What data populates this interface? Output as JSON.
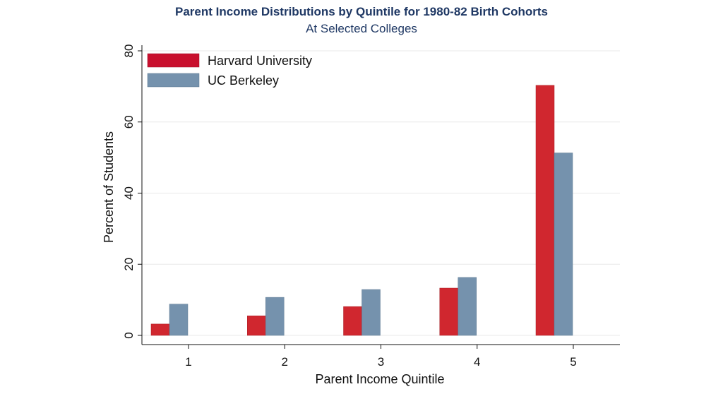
{
  "chart_data": {
    "type": "bar",
    "title": "Parent Income Distributions by Quintile for 1980-82 Birth Cohorts",
    "subtitle": "At Selected Colleges",
    "xlabel": "Parent Income Quintile",
    "ylabel": "Percent of Students",
    "categories": [
      "1",
      "2",
      "3",
      "4",
      "5"
    ],
    "ylim": [
      0,
      80
    ],
    "yticks": [
      "0",
      "20",
      "40",
      "60",
      "80"
    ],
    "grid": true,
    "legend_position": "top-left",
    "series": [
      {
        "name": "Harvard University",
        "color": "#d0272f",
        "legend_color": "#c8102e",
        "values": [
          3.2,
          5.5,
          8.1,
          13.3,
          70.3
        ]
      },
      {
        "name": "UC Berkeley",
        "color": "#7592ad",
        "legend_color": "#7592ad",
        "values": [
          8.8,
          10.7,
          12.9,
          16.3,
          51.3
        ]
      }
    ]
  }
}
